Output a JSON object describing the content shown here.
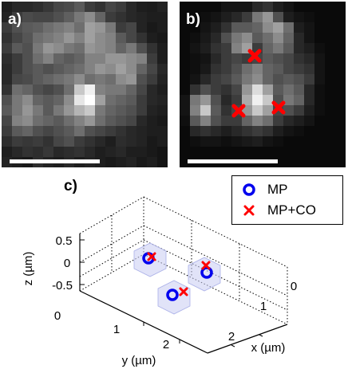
{
  "panels": {
    "a": {
      "label": "a)"
    },
    "b": {
      "label": "b)"
    },
    "c": {
      "label": "c)"
    }
  },
  "colors": {
    "mp": "#0000ee",
    "mpco": "#ff0000",
    "cube_fill": "#c9ccf2"
  },
  "pixel_grid_a": [
    [
      30,
      40,
      40,
      45,
      55,
      70,
      75,
      90,
      60,
      50,
      70,
      60,
      40,
      30,
      28,
      35
    ],
    [
      35,
      60,
      75,
      70,
      70,
      80,
      95,
      120,
      140,
      100,
      60,
      50,
      40,
      35,
      30,
      30
    ],
    [
      60,
      80,
      90,
      95,
      110,
      120,
      130,
      110,
      160,
      150,
      120,
      60,
      70,
      35,
      25,
      30
    ],
    [
      50,
      70,
      85,
      110,
      120,
      130,
      150,
      130,
      160,
      140,
      130,
      90,
      70,
      50,
      30,
      25
    ],
    [
      60,
      90,
      80,
      120,
      150,
      140,
      120,
      110,
      150,
      140,
      130,
      100,
      120,
      80,
      50,
      30
    ],
    [
      45,
      60,
      80,
      110,
      130,
      100,
      90,
      100,
      130,
      130,
      150,
      150,
      140,
      130,
      60,
      30
    ],
    [
      40,
      60,
      80,
      90,
      80,
      90,
      100,
      110,
      130,
      150,
      140,
      160,
      140,
      100,
      70,
      40
    ],
    [
      40,
      70,
      75,
      90,
      100,
      110,
      120,
      140,
      110,
      120,
      110,
      140,
      150,
      80,
      60,
      35
    ],
    [
      50,
      110,
      100,
      80,
      70,
      80,
      110,
      200,
      240,
      130,
      120,
      120,
      100,
      70,
      40,
      30
    ],
    [
      80,
      120,
      140,
      100,
      90,
      100,
      140,
      230,
      255,
      160,
      110,
      100,
      90,
      60,
      40,
      35
    ],
    [
      90,
      120,
      150,
      120,
      90,
      120,
      150,
      180,
      200,
      120,
      100,
      90,
      80,
      60,
      35,
      30
    ],
    [
      70,
      130,
      140,
      110,
      100,
      90,
      110,
      130,
      150,
      110,
      90,
      80,
      70,
      40,
      30,
      25
    ],
    [
      60,
      90,
      100,
      80,
      70,
      80,
      90,
      110,
      80,
      70,
      60,
      50,
      40,
      35,
      30,
      30
    ],
    [
      45,
      60,
      55,
      60,
      50,
      70,
      80,
      60,
      50,
      40,
      30,
      45,
      40,
      35,
      25,
      30
    ],
    [
      30,
      40,
      50,
      45,
      55,
      40,
      45,
      50,
      40,
      30,
      35,
      40,
      30,
      30,
      25,
      20
    ],
    [
      35,
      30,
      25,
      45,
      35,
      30,
      40,
      30,
      35,
      30,
      25,
      30,
      35,
      25,
      30,
      20
    ]
  ],
  "pixel_grid_b": [
    [
      10,
      10,
      10,
      10,
      20,
      20,
      20,
      40,
      50,
      30,
      20,
      10,
      10,
      10,
      10,
      10
    ],
    [
      10,
      10,
      15,
      20,
      30,
      40,
      60,
      120,
      150,
      80,
      30,
      20,
      15,
      10,
      10,
      10
    ],
    [
      10,
      10,
      20,
      30,
      50,
      90,
      90,
      100,
      140,
      160,
      110,
      30,
      20,
      10,
      10,
      10
    ],
    [
      10,
      15,
      25,
      40,
      80,
      120,
      140,
      90,
      110,
      140,
      100,
      40,
      20,
      10,
      10,
      10
    ],
    [
      10,
      20,
      30,
      50,
      60,
      130,
      160,
      60,
      100,
      120,
      90,
      40,
      30,
      15,
      10,
      10
    ],
    [
      10,
      15,
      20,
      40,
      60,
      70,
      60,
      70,
      90,
      80,
      70,
      50,
      40,
      20,
      10,
      10
    ],
    [
      10,
      15,
      25,
      50,
      60,
      80,
      110,
      130,
      100,
      90,
      70,
      60,
      50,
      20,
      10,
      10
    ],
    [
      10,
      20,
      40,
      60,
      70,
      90,
      120,
      140,
      100,
      80,
      90,
      80,
      60,
      20,
      10,
      10
    ],
    [
      10,
      50,
      80,
      60,
      50,
      70,
      150,
      220,
      160,
      90,
      110,
      90,
      40,
      15,
      10,
      10
    ],
    [
      20,
      120,
      150,
      80,
      40,
      60,
      170,
      240,
      200,
      80,
      120,
      100,
      40,
      15,
      10,
      10
    ],
    [
      20,
      130,
      200,
      90,
      50,
      70,
      150,
      200,
      160,
      70,
      80,
      60,
      30,
      15,
      10,
      10
    ],
    [
      15,
      90,
      130,
      80,
      60,
      60,
      100,
      130,
      110,
      60,
      40,
      30,
      20,
      10,
      10,
      10
    ],
    [
      10,
      40,
      50,
      40,
      30,
      40,
      50,
      60,
      50,
      30,
      20,
      15,
      10,
      10,
      10,
      10
    ],
    [
      10,
      15,
      20,
      20,
      15,
      20,
      25,
      30,
      20,
      15,
      10,
      10,
      10,
      10,
      10,
      10
    ],
    [
      10,
      10,
      10,
      10,
      10,
      10,
      10,
      10,
      10,
      10,
      10,
      10,
      10,
      10,
      10,
      10
    ],
    [
      10,
      10,
      10,
      10,
      10,
      10,
      10,
      10,
      10,
      10,
      10,
      10,
      10,
      10,
      10,
      10
    ]
  ],
  "chart_data": {
    "type": "scatter",
    "title": "",
    "xlabel": "x (µm)",
    "ylabel": "y (µm)",
    "zlabel": "z (µm)",
    "x_ticks": [
      "0",
      "1",
      "2"
    ],
    "y_ticks": [
      "0",
      "1",
      "2"
    ],
    "z_ticks": [
      "0.5",
      "0",
      "-0.5"
    ],
    "grid": true,
    "legend_position": "top-right",
    "series": [
      {
        "name": "MP",
        "points": [
          [
            0.5,
            0.6,
            0
          ],
          [
            1.6,
            1.6,
            0
          ],
          [
            1.1,
            2.1,
            0
          ]
        ]
      },
      {
        "name": "MP+CO",
        "points": [
          [
            0.5,
            0.7,
            0
          ],
          [
            1.6,
            1.5,
            0
          ],
          [
            1.1,
            2.2,
            0
          ]
        ]
      }
    ]
  }
}
